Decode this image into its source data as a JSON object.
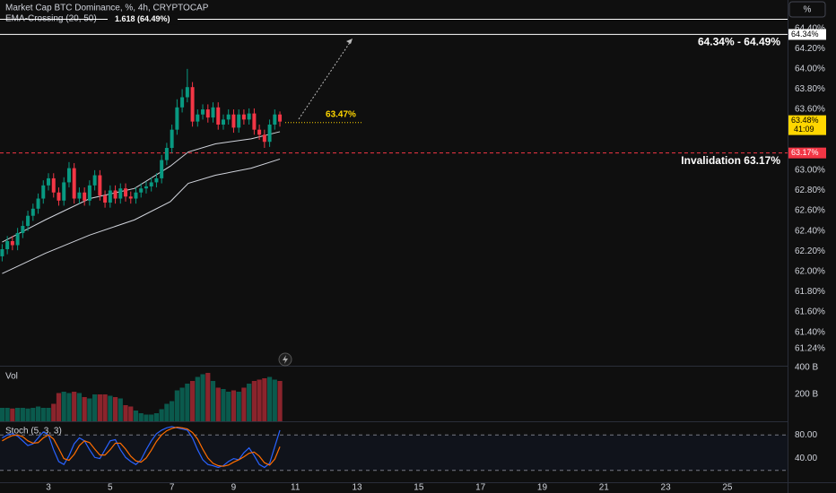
{
  "header": {
    "title": "Market Cap BTC Dominance, %, 4h, CRYPTOCAP",
    "indicator": "EMA-Crossing (20, 50)"
  },
  "scale_button": "%",
  "chart_data": [
    {
      "type": "candlestick",
      "up_color": "#089981",
      "down_color": "#f23645",
      "xlim": [
        1.43,
        26.95
      ],
      "xticks": [
        3,
        5,
        7,
        9,
        11,
        13,
        15,
        17,
        19,
        21,
        23,
        25
      ],
      "ylim": [
        61.07,
        64.68
      ],
      "yticks": [
        {
          "value": 61.24,
          "label": "61.24%"
        },
        {
          "value": 61.4,
          "label": "61.40%"
        },
        {
          "value": 61.6,
          "label": "61.60%"
        },
        {
          "value": 61.8,
          "label": "61.80%"
        },
        {
          "value": 62,
          "label": "62.00%"
        },
        {
          "value": 62.2,
          "label": "62.20%"
        },
        {
          "value": 62.4,
          "label": "62.40%"
        },
        {
          "value": 62.6,
          "label": "62.60%"
        },
        {
          "value": 62.8,
          "label": "62.80%"
        },
        {
          "value": 63,
          "label": "63.00%"
        },
        {
          "value": 63.6,
          "label": "63.60%"
        },
        {
          "value": 63.8,
          "label": "63.80%"
        },
        {
          "value": 64,
          "label": "64.00%"
        },
        {
          "value": 64.2,
          "label": "64.20%"
        },
        {
          "value": 64.4,
          "label": "64.40%"
        }
      ],
      "grid": false,
      "x": [
        1.5,
        1.667,
        1.833,
        2,
        2.167,
        2.333,
        2.5,
        2.667,
        2.833,
        3,
        3.167,
        3.333,
        3.5,
        3.667,
        3.833,
        4,
        4.167,
        4.333,
        4.5,
        4.667,
        4.833,
        5,
        5.167,
        5.333,
        5.5,
        5.667,
        5.833,
        6,
        6.167,
        6.333,
        6.5,
        6.667,
        6.833,
        7,
        7.167,
        7.333,
        7.5,
        7.667,
        7.833,
        8,
        8.167,
        8.333,
        8.5,
        8.667,
        8.833,
        9,
        9.167,
        9.333,
        9.5,
        9.667,
        9.833,
        10,
        10.167,
        10.333,
        10.5
      ],
      "open": [
        62.15,
        62.22,
        62.3,
        62.26,
        62.38,
        62.45,
        62.55,
        62.62,
        62.72,
        62.85,
        62.92,
        62.78,
        62.7,
        62.88,
        63.02,
        62.72,
        62.78,
        62.7,
        62.85,
        62.95,
        62.75,
        62.68,
        62.8,
        62.72,
        62.82,
        62.74,
        62.72,
        62.78,
        62.82,
        62.84,
        62.88,
        62.92,
        63.1,
        63.22,
        63.4,
        63.62,
        63.72,
        63.82,
        63.48,
        63.55,
        63.6,
        63.52,
        63.62,
        63.45,
        63.5,
        63.55,
        63.42,
        63.55,
        63.5,
        63.56,
        63.4,
        63.35,
        63.28,
        63.45,
        63.55
      ],
      "high": [
        62.27,
        62.35,
        62.35,
        62.43,
        62.5,
        62.6,
        62.67,
        62.77,
        62.9,
        62.97,
        62.97,
        62.83,
        62.93,
        63.08,
        63.07,
        62.83,
        62.83,
        62.9,
        63,
        63,
        62.8,
        62.85,
        62.85,
        62.87,
        62.87,
        62.79,
        62.83,
        62.87,
        62.89,
        62.93,
        62.97,
        63.15,
        63.27,
        63.45,
        63.7,
        63.8,
        64,
        63.87,
        63.6,
        63.65,
        63.65,
        63.67,
        63.67,
        63.55,
        63.6,
        63.6,
        63.6,
        63.6,
        63.61,
        63.61,
        63.45,
        63.4,
        63.5,
        63.6,
        63.58
      ],
      "low": [
        62.1,
        62.17,
        62.21,
        62.21,
        62.33,
        62.4,
        62.5,
        62.57,
        62.67,
        62.8,
        62.73,
        62.65,
        62.65,
        62.83,
        62.67,
        62.67,
        62.65,
        62.65,
        62.8,
        62.7,
        62.63,
        62.63,
        62.67,
        62.67,
        62.69,
        62.67,
        62.67,
        62.73,
        62.77,
        62.79,
        62.83,
        62.87,
        63.05,
        63.17,
        63.35,
        63.57,
        63.67,
        63.43,
        63.43,
        63.5,
        63.47,
        63.47,
        63.4,
        63.4,
        63.45,
        63.37,
        63.37,
        63.45,
        63.45,
        63.35,
        63.3,
        63.22,
        63.23,
        63.4,
        63.43
      ],
      "close": [
        62.22,
        62.3,
        62.26,
        62.38,
        62.45,
        62.55,
        62.62,
        62.72,
        62.85,
        62.92,
        62.78,
        62.7,
        62.88,
        63.02,
        62.72,
        62.78,
        62.7,
        62.85,
        62.95,
        62.75,
        62.68,
        62.8,
        62.72,
        62.82,
        62.74,
        62.72,
        62.78,
        62.82,
        62.84,
        62.88,
        62.92,
        63.1,
        63.22,
        63.4,
        63.62,
        63.72,
        63.82,
        63.48,
        63.55,
        63.6,
        63.52,
        63.62,
        63.45,
        63.5,
        63.55,
        63.42,
        63.55,
        63.5,
        63.56,
        63.4,
        63.35,
        63.28,
        63.45,
        63.55,
        63.48
      ],
      "lines": [
        {
          "color": "#d1d4dc",
          "x": [
            1.5,
            2.9,
            4.34,
            5.79,
            6.95,
            7.53,
            8.41,
            9.57,
            10.5
          ],
          "values": [
            62.29,
            62.51,
            62.72,
            62.82,
            63.04,
            63.18,
            63.26,
            63.31,
            63.38
          ]
        },
        {
          "color": "#d1d4dc",
          "x": [
            1.5,
            2.9,
            4.34,
            5.79,
            6.95,
            7.53,
            8.41,
            9.57,
            10.5
          ],
          "values": [
            61.98,
            62.18,
            62.36,
            62.51,
            62.69,
            62.87,
            62.95,
            63.02,
            63.11
          ]
        }
      ],
      "levels": [
        {
          "value": 64.49,
          "label": "1.618 (64.49%)",
          "style": "solid",
          "color": "#ffffff"
        },
        {
          "value": 64.34,
          "badge": "64.34%",
          "note": "64.34% - 64.49%",
          "style": "solid",
          "color": "#ffffff"
        },
        {
          "value": 63.17,
          "badge": "63.17%",
          "note": "Invalidation 63.17%",
          "style": "dashed",
          "color": "#f23645"
        },
        {
          "value": 63.47,
          "note": "63.47%",
          "style": "dotted",
          "color": "#ffd600"
        }
      ],
      "last_price": {
        "value": 63.48,
        "label": "63.48%",
        "countdown": "41:09"
      }
    },
    {
      "type": "bar",
      "title": "Vol",
      "ylim": [
        0,
        400
      ],
      "yticks": [
        {
          "value": 200,
          "label": "200 B"
        },
        {
          "value": 400,
          "label": "400 B"
        }
      ],
      "values": [
        100,
        100,
        95,
        100,
        100,
        95,
        100,
        110,
        100,
        100,
        130,
        210,
        220,
        210,
        220,
        210,
        180,
        170,
        200,
        200,
        200,
        190,
        180,
        170,
        120,
        110,
        80,
        60,
        50,
        50,
        60,
        90,
        130,
        150,
        230,
        250,
        280,
        300,
        330,
        350,
        360,
        300,
        250,
        240,
        220,
        230,
        220,
        250,
        280,
        300,
        310,
        320,
        330,
        310,
        300
      ]
    },
    {
      "type": "line",
      "title": "Stoch (5, 3, 3)",
      "ylim": [
        0,
        100
      ],
      "yticks": [
        {
          "value": 80,
          "label": "80.00"
        },
        {
          "value": 40,
          "label": "40.00"
        }
      ],
      "bands": [
        80,
        20
      ],
      "series": [
        {
          "color": "#2962ff",
          "values": [
            75,
            80,
            82,
            78,
            70,
            62,
            65,
            75,
            85,
            80,
            55,
            35,
            30,
            45,
            65,
            75,
            70,
            55,
            42,
            40,
            55,
            70,
            72,
            55,
            42,
            35,
            30,
            38,
            55,
            70,
            82,
            88,
            92,
            94,
            92,
            90,
            88,
            75,
            55,
            38,
            30,
            28,
            25,
            28,
            35,
            40,
            38,
            50,
            58,
            45,
            30,
            25,
            32,
            60,
            88
          ]
        },
        {
          "color": "#ff6d00",
          "values": [
            70,
            75,
            79,
            80,
            77,
            70,
            66,
            67,
            75,
            80,
            73,
            57,
            40,
            37,
            47,
            62,
            70,
            67,
            56,
            46,
            46,
            55,
            66,
            66,
            56,
            44,
            36,
            34,
            41,
            54,
            69,
            80,
            87,
            91,
            93,
            92,
            90,
            84,
            73,
            56,
            41,
            32,
            28,
            27,
            29,
            34,
            38,
            43,
            49,
            51,
            44,
            33,
            29,
            39,
            60
          ]
        }
      ]
    }
  ]
}
